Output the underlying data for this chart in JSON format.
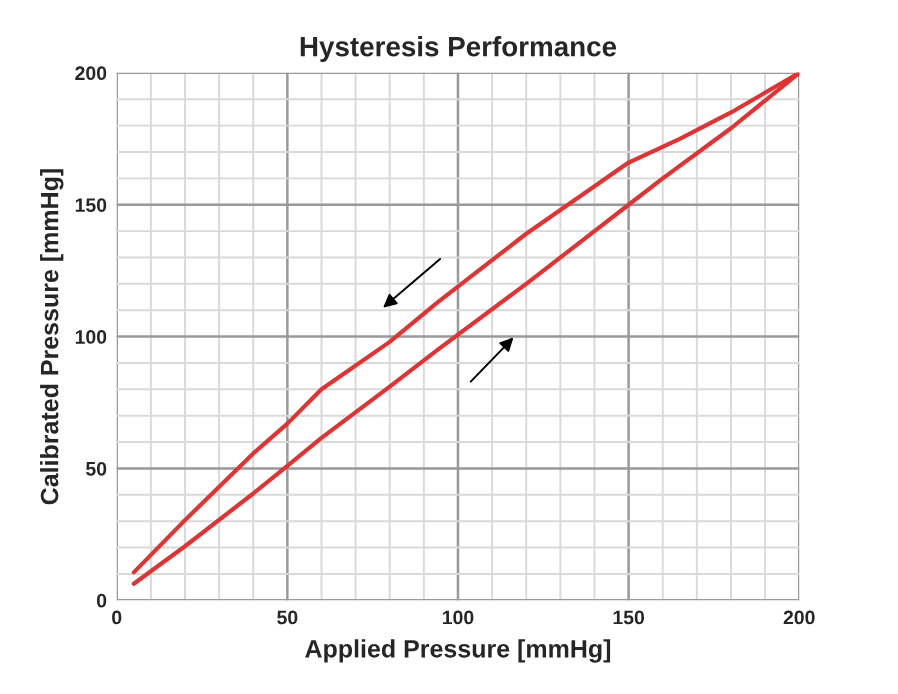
{
  "chart_data": {
    "type": "line",
    "title": "Hysteresis Performance",
    "xlabel": "Applied Pressure [mmHg]",
    "ylabel": "Calibrated Pressure [mmHg]",
    "series": [
      {
        "color": "#e03333",
        "x": [
          5,
          20,
          40,
          50,
          60,
          80,
          94,
          120,
          130,
          150,
          165,
          180,
          200
        ],
        "values": [
          10.6,
          30.4,
          55.7,
          67,
          80,
          98,
          113,
          139,
          148,
          166,
          175,
          185,
          200
        ]
      },
      {
        "color": "#e03333",
        "x": [
          5,
          20,
          40,
          50,
          60,
          80,
          94,
          120,
          140,
          150,
          160,
          180,
          200
        ],
        "values": [
          6.3,
          20.5,
          40.5,
          51,
          61.6,
          81,
          95,
          120,
          140,
          150,
          160,
          179,
          200
        ]
      }
    ],
    "xlim": [
      0,
      200
    ],
    "ylim": [
      0,
      200
    ],
    "xticks": [
      0,
      50,
      100,
      150,
      200
    ],
    "yticks": [
      0,
      50,
      100,
      150,
      200
    ],
    "grid": true,
    "legend": false,
    "marker": "none",
    "line_style": "solid"
  }
}
